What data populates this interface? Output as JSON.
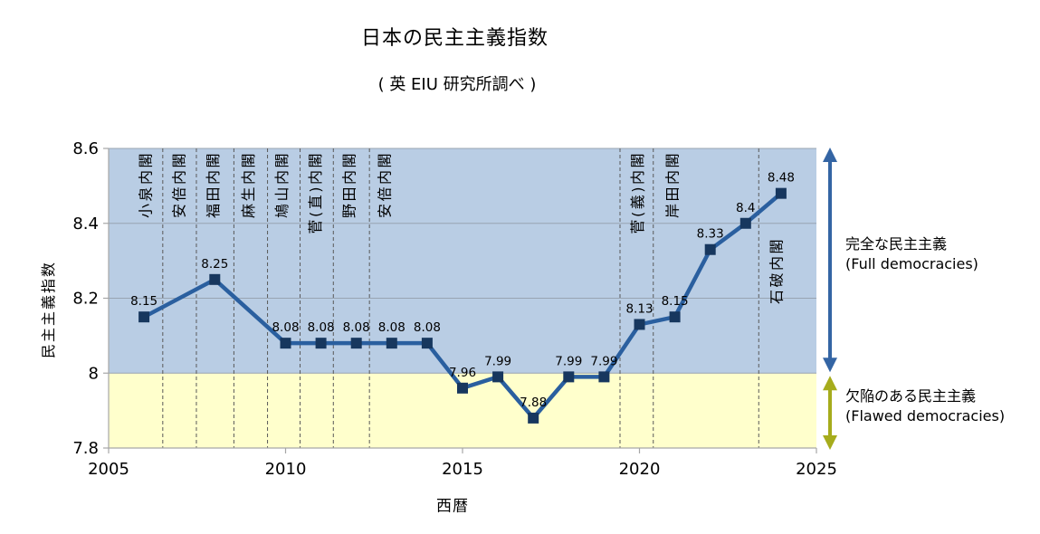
{
  "chart_data": {
    "type": "line",
    "title": "日本の民主主義指数",
    "subtitle": "( 英 EIU 研究所調べ )",
    "xlabel": "西暦",
    "ylabel": "民主主義指数",
    "xlim": [
      2005,
      2025
    ],
    "ylim": [
      7.8,
      8.6
    ],
    "x_ticks": [
      2005,
      2010,
      2015,
      2020,
      2025
    ],
    "y_ticks": [
      7.8,
      8,
      8.2,
      8.4,
      8.6
    ],
    "grid": true,
    "legend": "none",
    "series": [
      {
        "name": "民主主義指数",
        "x": [
          2006,
          2008,
          2010,
          2011,
          2012,
          2013,
          2014,
          2015,
          2016,
          2017,
          2018,
          2019,
          2020,
          2021,
          2022,
          2023,
          2024
        ],
        "values": [
          8.15,
          8.25,
          8.08,
          8.08,
          8.08,
          8.08,
          8.08,
          7.96,
          7.99,
          7.88,
          7.99,
          7.99,
          8.13,
          8.15,
          8.33,
          8.4,
          8.48
        ],
        "labels": [
          "8.15",
          "8.25",
          "8.08",
          "8.08",
          "8.08",
          "8.08",
          "8.08",
          "7.96",
          "7.99",
          "7.88",
          "7.99",
          "7.99",
          "8.13",
          "8.15",
          "8.33",
          "8.4",
          "8.48"
        ],
        "color": "#2A5F9F",
        "marker_color": "#17375E",
        "marker": "square"
      }
    ],
    "regions": [
      {
        "name": "full-democracies",
        "from": 8,
        "to": 8.6,
        "color": "#B9CDE4"
      },
      {
        "name": "flawed-democracies",
        "from": 7.8,
        "to": 8,
        "color": "#FFFFCC"
      }
    ],
    "cabinet_boundaries": [
      2006.53,
      2007.48,
      2008.54,
      2009.49,
      2010.41,
      2011.35,
      2012.37,
      2019.45,
      2020.39,
      2023.37
    ],
    "cabinets": [
      {
        "label": "小泉内閣",
        "year": 2006.05
      },
      {
        "label": "安倍内閣",
        "year": 2007.0
      },
      {
        "label": "福田内閣",
        "year": 2007.95
      },
      {
        "label": "麻生内閣",
        "year": 2008.95
      },
      {
        "label": "鳩山内閣",
        "year": 2009.9
      },
      {
        "label": "菅(直)内閣",
        "year": 2010.85
      },
      {
        "label": "野田内閣",
        "year": 2011.8
      },
      {
        "label": "安倍内閣",
        "year": 2012.8
      },
      {
        "label": "菅(義)内閣",
        "year": 2019.95
      },
      {
        "label": "岸田内閣",
        "year": 2020.93
      },
      {
        "label": "石破内閣",
        "year": 2023.88,
        "y_top": 262
      }
    ],
    "annotations": {
      "full": {
        "jp": "完全な民主主義",
        "en": "(Full democracies)",
        "arrow_color": "#3465A4",
        "span": [
          8,
          8.6
        ]
      },
      "flawed": {
        "jp": "欠陥のある民主主義",
        "en": "(Flawed democracies)",
        "arrow_color": "#A6AC1C",
        "span": [
          7.8,
          8
        ]
      }
    },
    "colors": {
      "boundary_line": "#595959",
      "grid_line": "#98A4B2",
      "axis_line": "#A6A6A6",
      "text": "#000000",
      "background": "#FFFFFF"
    }
  }
}
